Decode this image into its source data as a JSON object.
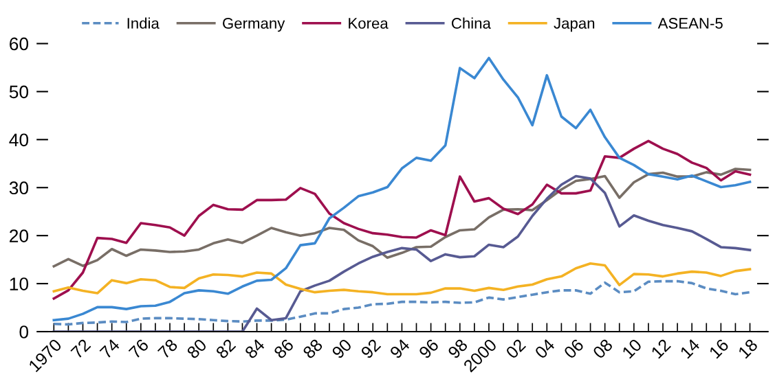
{
  "chart_data": {
    "type": "line",
    "x": [
      1970,
      1971,
      1972,
      1973,
      1974,
      1975,
      1976,
      1977,
      1978,
      1979,
      1980,
      1981,
      1982,
      1983,
      1984,
      1985,
      1986,
      1987,
      1988,
      1989,
      1990,
      1991,
      1992,
      1993,
      1994,
      1995,
      1996,
      1997,
      1998,
      1999,
      2000,
      2001,
      2002,
      2003,
      2004,
      2005,
      2006,
      2007,
      2008,
      2009,
      2010,
      2011,
      2012,
      2013,
      2014,
      2015,
      2016,
      2017,
      2018
    ],
    "series": [
      {
        "name": "India",
        "color": "#5b8cc2",
        "line_style": "dashed",
        "values": [
          1.6,
          1.5,
          1.8,
          1.9,
          2.1,
          2.0,
          2.7,
          2.8,
          2.8,
          2.7,
          2.6,
          2.4,
          2.2,
          2.1,
          2.3,
          2.3,
          2.5,
          3.1,
          3.8,
          3.8,
          4.7,
          5.0,
          5.7,
          5.8,
          6.2,
          6.2,
          6.1,
          6.2,
          6.0,
          6.1,
          7.1,
          6.7,
          7.2,
          7.7,
          8.2,
          8.6,
          8.6,
          7.9,
          10.2,
          8.2,
          8.4,
          10.4,
          10.5,
          10.5,
          10.1,
          9.0,
          8.5,
          7.8,
          8.2
        ]
      },
      {
        "name": "Germany",
        "color": "#786e66",
        "values": [
          13.6,
          15.1,
          13.7,
          14.9,
          17.2,
          15.8,
          17.1,
          16.9,
          16.6,
          16.7,
          17.1,
          18.4,
          19.2,
          18.5,
          20.0,
          21.6,
          20.7,
          20.0,
          20.5,
          21.6,
          21.2,
          19.0,
          17.8,
          15.4,
          16.4,
          17.6,
          17.7,
          19.7,
          21.1,
          21.3,
          23.8,
          25.4,
          25.5,
          25.3,
          27.4,
          29.6,
          31.4,
          31.8,
          32.4,
          27.9,
          31.1,
          32.8,
          33.1,
          32.3,
          32.3,
          33.2,
          32.7,
          33.9,
          33.7
        ]
      },
      {
        "name": "Korea",
        "color": "#9e0f4e",
        "values": [
          6.9,
          8.6,
          12.3,
          19.5,
          19.3,
          18.5,
          22.6,
          22.2,
          21.7,
          20.0,
          24.1,
          26.4,
          25.5,
          25.4,
          27.4,
          27.4,
          27.5,
          29.9,
          28.7,
          24.6,
          22.6,
          21.4,
          20.5,
          20.2,
          19.7,
          19.6,
          21.1,
          20.1,
          32.3,
          27.1,
          27.8,
          25.6,
          24.5,
          26.5,
          30.6,
          28.8,
          28.8,
          29.4,
          36.5,
          36.2,
          38.1,
          39.7,
          38.1,
          37.0,
          35.2,
          34.1,
          31.5,
          33.4,
          32.7
        ]
      },
      {
        "name": "China",
        "color": "#575a92",
        "values": [
          0,
          0,
          0,
          0,
          0,
          0,
          0,
          0,
          0,
          0,
          0,
          0,
          0,
          0,
          4.8,
          2.4,
          2.8,
          8.4,
          9.6,
          10.6,
          12.5,
          14.2,
          15.6,
          16.6,
          17.4,
          17.1,
          14.7,
          16.1,
          15.5,
          15.7,
          18.1,
          17.6,
          19.8,
          24.1,
          27.7,
          30.6,
          32.4,
          31.9,
          28.9,
          21.9,
          24.2,
          23.1,
          22.2,
          21.6,
          20.9,
          19.3,
          17.6,
          17.4,
          17.0
        ]
      },
      {
        "name": "Japan",
        "color": "#f4b223",
        "values": [
          8.4,
          9.2,
          8.5,
          8.0,
          10.7,
          10.1,
          10.9,
          10.7,
          9.3,
          9.1,
          11.1,
          11.9,
          11.8,
          11.5,
          12.3,
          12.1,
          9.8,
          8.9,
          8.2,
          8.5,
          8.7,
          8.4,
          8.2,
          7.8,
          7.8,
          7.8,
          8.1,
          9.0,
          9.0,
          8.5,
          9.1,
          8.7,
          9.4,
          9.8,
          10.9,
          11.5,
          13.2,
          14.2,
          13.8,
          9.7,
          12.0,
          11.9,
          11.5,
          12.1,
          12.5,
          12.3,
          11.6,
          12.6,
          13.0
        ]
      },
      {
        "name": "ASEAN-5",
        "color": "#3a88d2",
        "values": [
          2.4,
          2.7,
          3.7,
          5.1,
          5.1,
          4.7,
          5.3,
          5.4,
          6.2,
          8.0,
          8.6,
          8.4,
          7.9,
          9.4,
          10.6,
          10.8,
          13.2,
          18.0,
          18.4,
          23.6,
          25.8,
          28.2,
          29.0,
          30.1,
          34.0,
          36.2,
          35.6,
          38.8,
          54.9,
          52.8,
          57.0,
          52.5,
          48.8,
          43.0,
          53.4,
          44.8,
          42.4,
          46.2,
          40.5,
          36.2,
          34.7,
          32.8,
          32.3,
          31.7,
          32.5,
          31.3,
          30.1,
          30.5,
          31.2
        ]
      }
    ],
    "xlim": [
      1969.6,
      2018.5
    ],
    "xticks": [
      {
        "value": 1970,
        "label": "1970"
      },
      {
        "value": 1971,
        "label": null
      },
      {
        "value": 1972,
        "label": "72"
      },
      {
        "value": 1973,
        "label": null
      },
      {
        "value": 1974,
        "label": "74"
      },
      {
        "value": 1975,
        "label": null
      },
      {
        "value": 1976,
        "label": "76"
      },
      {
        "value": 1977,
        "label": null
      },
      {
        "value": 1978,
        "label": "78"
      },
      {
        "value": 1979,
        "label": null
      },
      {
        "value": 1980,
        "label": "80"
      },
      {
        "value": 1981,
        "label": null
      },
      {
        "value": 1982,
        "label": "82"
      },
      {
        "value": 1983,
        "label": null
      },
      {
        "value": 1984,
        "label": "84"
      },
      {
        "value": 1985,
        "label": null
      },
      {
        "value": 1986,
        "label": "86"
      },
      {
        "value": 1987,
        "label": null
      },
      {
        "value": 1988,
        "label": "88"
      },
      {
        "value": 1989,
        "label": null
      },
      {
        "value": 1990,
        "label": "90"
      },
      {
        "value": 1991,
        "label": null
      },
      {
        "value": 1992,
        "label": "92"
      },
      {
        "value": 1993,
        "label": null
      },
      {
        "value": 1994,
        "label": "94"
      },
      {
        "value": 1995,
        "label": null
      },
      {
        "value": 1996,
        "label": "96"
      },
      {
        "value": 1997,
        "label": null
      },
      {
        "value": 1998,
        "label": "98"
      },
      {
        "value": 1999,
        "label": null
      },
      {
        "value": 2000,
        "label": "2000"
      },
      {
        "value": 2001,
        "label": null
      },
      {
        "value": 2002,
        "label": "02"
      },
      {
        "value": 2003,
        "label": null
      },
      {
        "value": 2004,
        "label": "04"
      },
      {
        "value": 2005,
        "label": null
      },
      {
        "value": 2006,
        "label": "06"
      },
      {
        "value": 2007,
        "label": null
      },
      {
        "value": 2008,
        "label": "08"
      },
      {
        "value": 2009,
        "label": null
      },
      {
        "value": 2010,
        "label": "10"
      },
      {
        "value": 2011,
        "label": null
      },
      {
        "value": 2012,
        "label": "12"
      },
      {
        "value": 2013,
        "label": null
      },
      {
        "value": 2014,
        "label": "14"
      },
      {
        "value": 2015,
        "label": null
      },
      {
        "value": 2016,
        "label": "16"
      },
      {
        "value": 2017,
        "label": null
      },
      {
        "value": 2018,
        "label": "18"
      }
    ],
    "ylim": [
      0,
      60
    ],
    "yticks": [
      0,
      10,
      20,
      30,
      40,
      50,
      60
    ],
    "legend": "top",
    "grid": false,
    "marker": "none",
    "line_style": "solid"
  }
}
